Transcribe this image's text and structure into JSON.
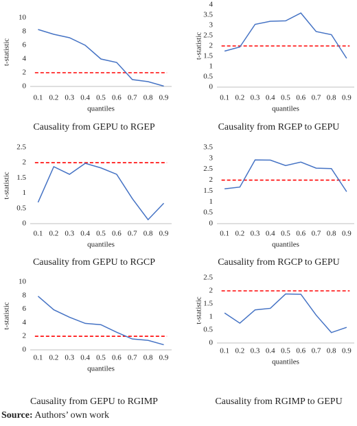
{
  "chart_data": [
    {
      "type": "line",
      "title": "Causality from GEPU to RGEP",
      "xlabel": "quantiles",
      "ylabel": "t-statistic",
      "categories": [
        "0.1",
        "0.2",
        "0.3",
        "0.4",
        "0.5",
        "0.6",
        "0.7",
        "0.8",
        "0.9"
      ],
      "values": [
        8.3,
        7.6,
        7.1,
        6.0,
        4.0,
        3.5,
        1.0,
        0.7,
        0.05
      ],
      "color": "#4472c4",
      "ylim": [
        0,
        10
      ],
      "yticks": [
        0,
        2,
        4,
        6,
        8,
        10
      ],
      "reference_line": {
        "value": 2,
        "color": "#ff0000",
        "dashed": true
      }
    },
    {
      "type": "line",
      "title": "Causality from RGEP to GEPU",
      "xlabel": "quantiles",
      "ylabel": "t-statistic",
      "categories": [
        "0.1",
        "0.2",
        "0.3",
        "0.4",
        "0.5",
        "0.6",
        "0.7",
        "0.8",
        "0.9"
      ],
      "values": [
        1.75,
        1.95,
        3.05,
        3.2,
        3.22,
        3.6,
        2.7,
        2.55,
        1.4
      ],
      "color": "#4472c4",
      "ylim": [
        0,
        4
      ],
      "yticks": [
        0,
        0.5,
        1,
        1.5,
        2,
        2.5,
        3,
        3.5,
        4
      ],
      "reference_line": {
        "value": 2,
        "color": "#ff0000",
        "dashed": true
      }
    },
    {
      "type": "line",
      "title": "Causality from GEPU to RGCP",
      "xlabel": "quantiles",
      "ylabel": "t-statistic",
      "categories": [
        "0.1",
        "0.2",
        "0.3",
        "0.4",
        "0.5",
        "0.6",
        "0.7",
        "0.8",
        "0.9"
      ],
      "values": [
        0.7,
        1.87,
        1.62,
        1.98,
        1.83,
        1.62,
        0.82,
        0.13,
        0.67
      ],
      "color": "#4472c4",
      "ylim": [
        0,
        2.5
      ],
      "yticks": [
        0,
        0.5,
        1,
        1.5,
        2,
        2.5
      ],
      "reference_line": {
        "value": 2,
        "color": "#ff0000",
        "dashed": true
      }
    },
    {
      "type": "line",
      "title": "Causality from RGCP to GEPU",
      "xlabel": "quantiles",
      "categories": [
        "0.1",
        "0.2",
        "0.3",
        "0.4",
        "0.5",
        "0.6",
        "0.7",
        "0.8",
        "0.9"
      ],
      "values": [
        1.6,
        1.68,
        2.93,
        2.92,
        2.67,
        2.83,
        2.55,
        2.53,
        1.47
      ],
      "color": "#4472c4",
      "ylim": [
        0,
        3.5
      ],
      "yticks": [
        0,
        0.5,
        1,
        1.5,
        2,
        2.5,
        3,
        3.5
      ],
      "reference_line": {
        "value": 2,
        "color": "#ff0000",
        "dashed": true
      }
    },
    {
      "type": "line",
      "title": "Causality from GEPU to RGIMP",
      "xlabel": "quantiles",
      "ylabel": "t-statistic",
      "categories": [
        "0.1",
        "0.2",
        "0.3",
        "0.4",
        "0.5",
        "0.6",
        "0.7",
        "0.8",
        "0.9"
      ],
      "values": [
        7.9,
        5.9,
        4.8,
        3.9,
        3.7,
        2.6,
        1.6,
        1.4,
        0.75
      ],
      "color": "#4472c4",
      "ylim": [
        0,
        10
      ],
      "yticks": [
        0,
        2,
        4,
        6,
        8,
        10
      ],
      "reference_line": {
        "value": 2,
        "color": "#ff0000",
        "dashed": true
      }
    },
    {
      "type": "line",
      "title": "Causality from RGIMP to GEPU",
      "xlabel": "quantiles",
      "ylabel": "t-statistic",
      "categories": [
        "0.1",
        "0.2",
        "0.3",
        "0.4",
        "0.5",
        "0.6",
        "0.7",
        "0.8",
        "0.9"
      ],
      "values": [
        1.15,
        0.76,
        1.27,
        1.33,
        1.88,
        1.87,
        1.07,
        0.4,
        0.6
      ],
      "color": "#4472c4",
      "ylim": [
        0,
        2.5
      ],
      "yticks": [
        0,
        0.5,
        1,
        1.5,
        2,
        2.5
      ],
      "reference_line": {
        "value": 2,
        "color": "#ff0000",
        "dashed": true
      }
    }
  ],
  "source": {
    "label": "Source:",
    "text": "Authors’ own work"
  }
}
